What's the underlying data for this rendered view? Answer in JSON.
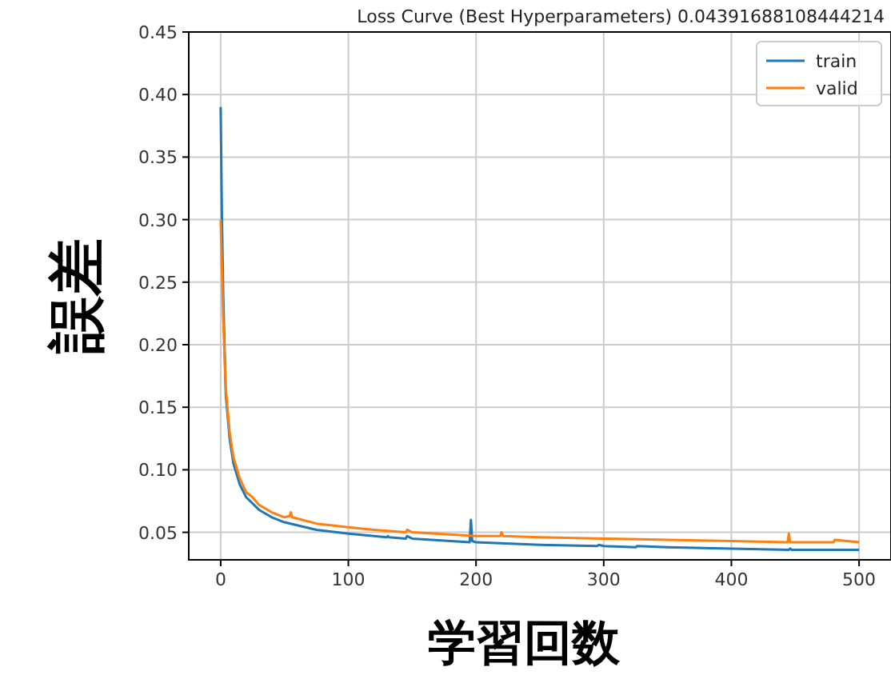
{
  "chart_data": {
    "type": "line",
    "title": "Loss Curve (Best Hyperparameters) 0.04391688108444214",
    "xlabel": "学習回数",
    "ylabel": "誤差",
    "xlim": [
      -25,
      525
    ],
    "ylim": [
      0.028,
      0.45
    ],
    "xticks": [
      0,
      100,
      200,
      300,
      400,
      500
    ],
    "yticks": [
      {
        "value": 0.05,
        "label": "0.05"
      },
      {
        "value": 0.1,
        "label": "0.10"
      },
      {
        "value": 0.15,
        "label": "0.15"
      },
      {
        "value": 0.2,
        "label": "0.20"
      },
      {
        "value": 0.25,
        "label": "0.25"
      },
      {
        "value": 0.3,
        "label": "0.30"
      },
      {
        "value": 0.35,
        "label": "0.35"
      },
      {
        "value": 0.4,
        "label": "0.40"
      },
      {
        "value": 0.45,
        "label": "0.45"
      }
    ],
    "grid": true,
    "legend": "top right",
    "line_style": "solid",
    "marker": "none",
    "series": [
      {
        "name": "train",
        "color": "#1f77b4",
        "x": [
          0,
          1,
          2,
          4,
          7,
          10,
          15,
          20,
          30,
          40,
          50,
          75,
          100,
          130,
          131,
          132,
          145,
          146,
          150,
          195,
          196,
          197,
          200,
          250,
          295,
          296,
          300,
          325,
          326,
          350,
          400,
          445,
          446,
          447,
          500
        ],
        "values": [
          0.39,
          0.3,
          0.24,
          0.16,
          0.125,
          0.105,
          0.088,
          0.078,
          0.068,
          0.062,
          0.058,
          0.052,
          0.049,
          0.046,
          0.047,
          0.046,
          0.045,
          0.047,
          0.045,
          0.042,
          0.06,
          0.043,
          0.042,
          0.04,
          0.039,
          0.04,
          0.039,
          0.038,
          0.039,
          0.038,
          0.037,
          0.036,
          0.037,
          0.036,
          0.036
        ]
      },
      {
        "name": "valid",
        "color": "#ff7f0e",
        "x": [
          0,
          2,
          4,
          7,
          10,
          15,
          20,
          25,
          30,
          40,
          50,
          54,
          55,
          56,
          75,
          100,
          120,
          145,
          146,
          150,
          200,
          219,
          220,
          221,
          250,
          300,
          350,
          400,
          444,
          445,
          446,
          480,
          481,
          500
        ],
        "values": [
          0.3,
          0.22,
          0.165,
          0.13,
          0.11,
          0.093,
          0.082,
          0.078,
          0.072,
          0.066,
          0.062,
          0.063,
          0.066,
          0.062,
          0.057,
          0.054,
          0.052,
          0.05,
          0.052,
          0.05,
          0.047,
          0.047,
          0.05,
          0.047,
          0.046,
          0.045,
          0.044,
          0.043,
          0.042,
          0.049,
          0.042,
          0.042,
          0.044,
          0.042
        ]
      }
    ]
  }
}
